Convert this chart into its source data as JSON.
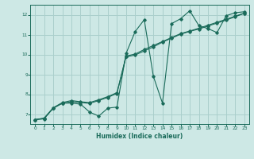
{
  "title": "",
  "xlabel": "Humidex (Indice chaleur)",
  "ylabel": "",
  "bg_color": "#cde8e5",
  "grid_color": "#aacfcc",
  "line_color": "#1a6b5a",
  "xlim": [
    -0.5,
    23.5
  ],
  "ylim": [
    6.5,
    12.5
  ],
  "x_ticks": [
    0,
    1,
    2,
    3,
    4,
    5,
    6,
    7,
    8,
    9,
    10,
    11,
    12,
    13,
    14,
    15,
    16,
    17,
    18,
    19,
    20,
    21,
    22,
    23
  ],
  "y_ticks": [
    7,
    8,
    9,
    10,
    11,
    12
  ],
  "series1_x": [
    0,
    1,
    2,
    3,
    4,
    5,
    6,
    7,
    8,
    9,
    10,
    11,
    12,
    13,
    14,
    15,
    16,
    17,
    18,
    19,
    20,
    21,
    22,
    23
  ],
  "series1_y": [
    6.72,
    6.78,
    7.3,
    7.55,
    7.55,
    7.5,
    7.1,
    6.9,
    7.3,
    7.35,
    10.05,
    11.15,
    11.75,
    8.9,
    7.55,
    11.55,
    11.8,
    12.2,
    11.45,
    11.3,
    11.1,
    11.95,
    12.1,
    12.15
  ],
  "series2_x": [
    0,
    1,
    2,
    3,
    4,
    5,
    6,
    7,
    8,
    9,
    10,
    11,
    12,
    13,
    14,
    15,
    16,
    17,
    18,
    19,
    20,
    21,
    22,
    23
  ],
  "series2_y": [
    6.72,
    6.8,
    7.32,
    7.58,
    7.68,
    7.62,
    7.58,
    7.72,
    7.88,
    8.08,
    9.92,
    10.02,
    10.25,
    10.45,
    10.65,
    10.85,
    11.05,
    11.18,
    11.32,
    11.47,
    11.62,
    11.77,
    11.93,
    12.08
  ],
  "series3_x": [
    0,
    1,
    2,
    3,
    4,
    5,
    6,
    7,
    8,
    9,
    10,
    11,
    12,
    13,
    14,
    15,
    16,
    17,
    18,
    19,
    20,
    21,
    22,
    23
  ],
  "series3_y": [
    6.72,
    6.76,
    7.3,
    7.54,
    7.62,
    7.58,
    7.54,
    7.68,
    7.84,
    8.04,
    9.88,
    9.97,
    10.18,
    10.38,
    10.62,
    10.82,
    11.02,
    11.16,
    11.28,
    11.43,
    11.58,
    11.73,
    11.9,
    12.07
  ]
}
